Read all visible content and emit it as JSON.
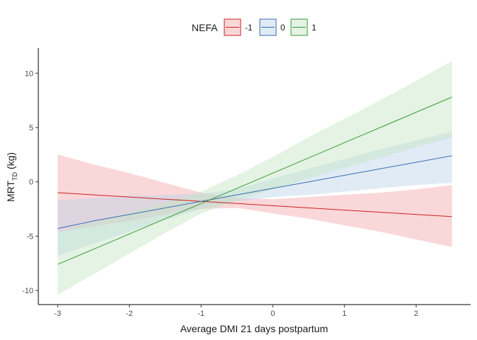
{
  "chart_data": {
    "type": "line",
    "xlabel": "Average DMI 21 days postpartum",
    "ylabel_main": "MRT",
    "ylabel_sub": "TD",
    "ylabel_unit": " (kg)",
    "xlim": [
      -3.27,
      2.76
    ],
    "ylim": [
      -11.3,
      12.3
    ],
    "x_ticks": [
      -3,
      -2,
      -1,
      0,
      1,
      2
    ],
    "y_ticks": [
      -10,
      -5,
      0,
      5,
      10
    ],
    "legend": {
      "title": "NEFA",
      "position": "top"
    },
    "series": [
      {
        "name": "-1",
        "color": "#cc2222",
        "fill": "#f4a6aa",
        "x": [
          -3,
          -2.5,
          -2,
          -1.5,
          -1,
          -0.5,
          0,
          0.5,
          1,
          1.5,
          2,
          2.5
        ],
        "y": [
          -1.0,
          -1.2,
          -1.4,
          -1.6,
          -1.8,
          -2.0,
          -2.2,
          -2.4,
          -2.6,
          -2.8,
          -3.0,
          -3.2
        ],
        "lower": [
          -4.6,
          -4.1,
          -3.6,
          -3.0,
          -2.5,
          -2.4,
          -2.9,
          -3.4,
          -4.0,
          -4.6,
          -5.3,
          -6.0
        ],
        "upper": [
          2.5,
          1.6,
          0.8,
          -0.1,
          -1.0,
          -1.5,
          -1.6,
          -1.4,
          -1.2,
          -1.0,
          -0.7,
          -0.3
        ]
      },
      {
        "name": "0",
        "color": "#3a6fb0",
        "fill": "#bcd2ea",
        "x": [
          -3,
          -2.5,
          -2,
          -1.5,
          -1,
          -0.5,
          0,
          0.5,
          1,
          1.5,
          2,
          2.5
        ],
        "y": [
          -4.3,
          -3.6,
          -3.0,
          -2.4,
          -1.8,
          -1.2,
          -0.6,
          0.0,
          0.6,
          1.2,
          1.8,
          2.4
        ],
        "lower": [
          -6.8,
          -5.7,
          -4.6,
          -3.5,
          -2.5,
          -1.8,
          -1.4,
          -1.2,
          -0.9,
          -0.6,
          -0.3,
          -0.1
        ],
        "upper": [
          -1.7,
          -1.5,
          -1.3,
          -1.2,
          -1.1,
          -0.7,
          0.3,
          1.2,
          2.1,
          3.0,
          3.8,
          4.6
        ]
      },
      {
        "name": "1",
        "color": "#3a9a3a",
        "fill": "#c4e4c0",
        "x": [
          -3,
          -2.5,
          -2,
          -1.5,
          -1,
          -0.5,
          0,
          0.5,
          1,
          1.5,
          2,
          2.5
        ],
        "y": [
          -7.6,
          -6.2,
          -4.8,
          -3.4,
          -2.0,
          -0.6,
          0.8,
          2.2,
          3.6,
          5.0,
          6.4,
          7.8
        ],
        "lower": [
          -10.4,
          -8.5,
          -6.6,
          -4.7,
          -2.9,
          -1.7,
          -0.7,
          0.3,
          1.3,
          2.2,
          3.2,
          4.1
        ],
        "upper": [
          -4.6,
          -3.7,
          -2.8,
          -1.9,
          -0.9,
          0.6,
          2.3,
          4.1,
          5.8,
          7.5,
          9.3,
          11.1
        ]
      }
    ]
  }
}
